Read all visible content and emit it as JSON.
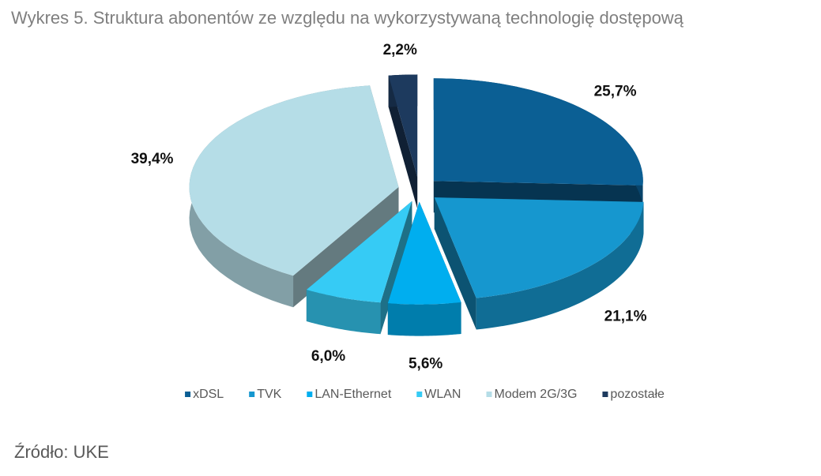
{
  "chart_data": {
    "type": "pie3d",
    "title": "Wykres 5. Struktura abonentów ze względu na wykorzystywaną technologię dostępową",
    "source": "Źródło: UKE",
    "series": [
      {
        "name": "xDSL",
        "color": "#0b5f94",
        "values": [
          25.7
        ],
        "value_labels": [
          "25,7%"
        ]
      },
      {
        "name": "TVK",
        "color": "#1697cf",
        "values": [
          21.1
        ],
        "value_labels": [
          "21,1%"
        ]
      },
      {
        "name": "LAN-Ethernet",
        "color": "#00aeef",
        "values": [
          5.6
        ],
        "value_labels": [
          "5,6%"
        ]
      },
      {
        "name": "WLAN",
        "color": "#36cbf5",
        "values": [
          6.0
        ],
        "value_labels": [
          "6,0%"
        ]
      },
      {
        "name": "Modem 2G/3G",
        "color": "#b5dde7",
        "values": [
          39.4
        ],
        "value_labels": [
          "39,4%"
        ]
      },
      {
        "name": "pozostałe",
        "color": "#1d3a5e",
        "values": [
          2.2
        ],
        "value_labels": [
          "2,2%"
        ]
      }
    ],
    "legend": "bottom"
  }
}
